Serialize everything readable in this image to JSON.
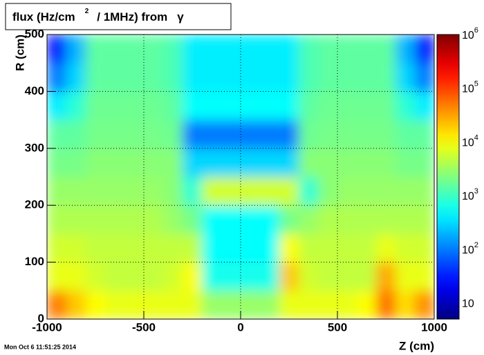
{
  "chart_data": {
    "type": "heatmap",
    "title": [
      "flux (Hz/cm",
      "2",
      "/ 1MHz) from",
      "γ"
    ],
    "xlabel": "Z (cm)",
    "ylabel": "R (cm)",
    "timestamp": "Mon Oct  6 11:51:25 2014",
    "xlim": [
      -1000,
      1000
    ],
    "ylim": [
      0,
      500
    ],
    "xticks": [
      -1000,
      -500,
      0,
      500,
      1000
    ],
    "yticks": [
      0,
      100,
      200,
      300,
      400,
      500
    ],
    "grid": true,
    "zlog": true,
    "zlim": [
      5,
      1000000
    ],
    "zticks": [
      10,
      {
        "value": 100,
        "label": "10",
        "sup": "2"
      },
      {
        "value": 1000,
        "label": "10",
        "sup": "3"
      },
      {
        "value": 10000,
        "label": "10",
        "sup": "4"
      },
      {
        "value": 100000,
        "label": "10",
        "sup": "5"
      },
      {
        "value": 1000000,
        "label": "10",
        "sup": "6"
      }
    ],
    "palette": "rainbow",
    "xbins": [
      -1000,
      -900,
      -800,
      -700,
      -600,
      -500,
      -400,
      -300,
      -200,
      -100,
      0,
      100,
      200,
      300,
      400,
      500,
      600,
      700,
      800,
      900,
      1000
    ],
    "ybins": [
      0,
      50,
      100,
      150,
      200,
      250,
      300,
      350,
      400,
      450,
      500
    ],
    "z": [
      [
        50000,
        20000,
        10000,
        8000,
        8000,
        8000,
        8000,
        8000,
        3000,
        3000,
        3000,
        3000,
        8000,
        8000,
        8000,
        8000,
        10000,
        60000,
        15000,
        40000
      ],
      [
        8000,
        8000,
        6000,
        5000,
        5000,
        5000,
        6000,
        10000,
        600,
        600,
        600,
        600,
        20000,
        6000,
        5000,
        5000,
        5000,
        30000,
        8000,
        8000
      ],
      [
        6000,
        6000,
        5000,
        5000,
        5000,
        5000,
        5000,
        5000,
        500,
        500,
        500,
        500,
        10000,
        5000,
        5000,
        5000,
        5000,
        8000,
        6000,
        6000
      ],
      [
        4000,
        4000,
        4000,
        4000,
        4000,
        4000,
        3000,
        2000,
        500,
        500,
        500,
        500,
        2000,
        3000,
        4000,
        4000,
        4000,
        4000,
        4000,
        4000
      ],
      [
        3000,
        3000,
        3000,
        3000,
        3000,
        3000,
        2500,
        800,
        6000,
        6000,
        6000,
        6000,
        6000,
        800,
        2500,
        3000,
        3000,
        3000,
        3000,
        3000
      ],
      [
        2000,
        2000,
        2500,
        2500,
        2500,
        2500,
        2500,
        300,
        300,
        300,
        300,
        300,
        300,
        2500,
        2500,
        2500,
        2500,
        2500,
        2000,
        2000
      ],
      [
        1500,
        1500,
        2000,
        2000,
        2000,
        2000,
        1800,
        100,
        100,
        100,
        100,
        100,
        100,
        1800,
        2000,
        2000,
        2000,
        2000,
        1500,
        1500
      ],
      [
        400,
        800,
        1800,
        1800,
        1800,
        1800,
        1500,
        500,
        500,
        500,
        500,
        500,
        500,
        1500,
        1800,
        1800,
        1800,
        1800,
        800,
        400
      ],
      [
        100,
        300,
        1500,
        1500,
        1500,
        1500,
        1200,
        400,
        400,
        400,
        400,
        400,
        400,
        1200,
        1500,
        1500,
        1500,
        1500,
        300,
        100
      ],
      [
        30,
        200,
        1500,
        1500,
        1500,
        1500,
        1200,
        400,
        400,
        400,
        400,
        400,
        400,
        1200,
        1500,
        1500,
        1500,
        1500,
        200,
        30
      ]
    ]
  }
}
